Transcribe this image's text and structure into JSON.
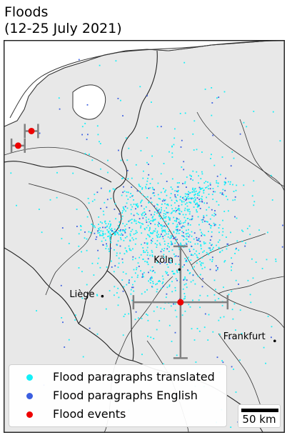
{
  "title": "Floods\n(12-25 July 2021)",
  "cities": [
    {
      "name": "Köln",
      "lon": 6.96,
      "lat": 50.94
    },
    {
      "name": "Liège",
      "lon": 5.57,
      "lat": 50.63
    },
    {
      "name": "Frankfurt",
      "lon": 8.68,
      "lat": 50.11
    }
  ],
  "map_extent": {
    "lon": [
      3.8,
      8.85
    ],
    "lat": [
      49.05,
      53.6
    ]
  },
  "flood_events": [
    {
      "lon": 6.98,
      "lat": 50.56,
      "lon_err": 0.85,
      "lat_err": 0.65
    },
    {
      "lon": 4.29,
      "lat": 52.55,
      "lon_err": 0.12,
      "lat_err": 0.0
    },
    {
      "lon": 4.05,
      "lat": 52.38,
      "lon_err": 0.12,
      "lat_err": 0.0
    }
  ],
  "legend": [
    {
      "label": "Flood paragraphs translated",
      "color": "#13f0f8"
    },
    {
      "label": "Flood paragraphs English",
      "color": "#3b5ee0"
    },
    {
      "label": "Flood events",
      "color": "#ee0000"
    }
  ],
  "scale_bar": {
    "label": "50 km",
    "km": 50
  },
  "colors": {
    "land": "#e8e8e8",
    "sea": "#ffffff",
    "border": "#222222",
    "errorbar": "#808080"
  }
}
